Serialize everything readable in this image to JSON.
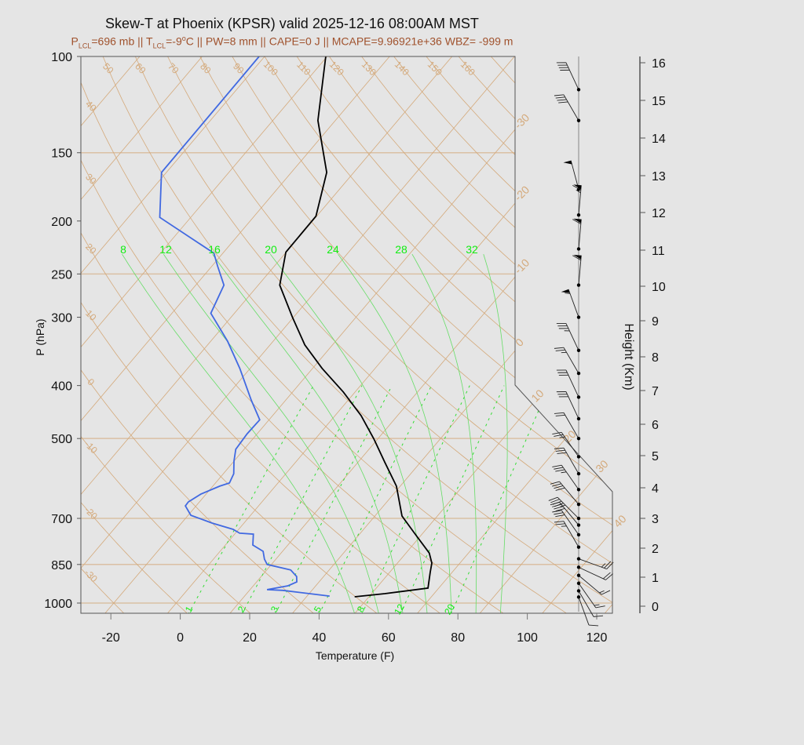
{
  "title": "Skew-T at Phoenix (KPSR) valid 2025-12-16 08:00AM MST",
  "subtitle": {
    "p_sym": "P",
    "lcl": "LCL",
    "p_val": "=696 mb || ",
    "t_sym": "T",
    "t_val": "=-9",
    "deg": "o",
    "rest": "C || PW=8 mm || CAPE=0 J || MCAPE=9.96921e+36 WBZ= -999 m"
  },
  "colors": {
    "temperature": "#000000",
    "dewpoint": "#4169e1",
    "isotherm": "#d4a97a",
    "moist_adiabat": "#66dd66",
    "mixing_ratio": "#22dd22",
    "subtitle": "#a0522d"
  },
  "chart_data": {
    "type": "line",
    "subtype": "skew-t log-p",
    "xlabel": "Temperature (F)",
    "ylabel": "P (hPa)",
    "y2label": "Height (Km)",
    "xticks": [
      "-20",
      "0",
      "20",
      "40",
      "60",
      "80",
      "100",
      "120"
    ],
    "yticks": [
      "100",
      "150",
      "200",
      "250",
      "300",
      "400",
      "500",
      "700",
      "850",
      "1000"
    ],
    "y2ticks": [
      "0",
      "1",
      "2",
      "3",
      "4",
      "5",
      "6",
      "7",
      "8",
      "9",
      "10",
      "11",
      "12",
      "13",
      "14",
      "15",
      "16"
    ],
    "ylim": [
      1050,
      100
    ],
    "yscale": "log",
    "series": [
      {
        "key": "temperature",
        "color": "#000000",
        "points": [
          [
            974,
            45.9
          ],
          [
            961,
            53.8
          ],
          [
            939,
            64.9
          ],
          [
            879,
            61.7
          ],
          [
            845,
            59.9
          ],
          [
            810,
            56.7
          ],
          [
            745,
            47.6
          ],
          [
            693,
            39.8
          ],
          [
            611,
            30.9
          ],
          [
            553,
            21.8
          ],
          [
            501,
            12.9
          ],
          [
            454,
            3.5
          ],
          [
            411,
            -7.4
          ],
          [
            372,
            -19.3
          ],
          [
            337,
            -30.0
          ],
          [
            300,
            -40.3
          ],
          [
            262,
            -51.8
          ],
          [
            228,
            -58.1
          ],
          [
            196,
            -58.2
          ],
          [
            163,
            -65.8
          ],
          [
            131,
            -81.0
          ],
          [
            100,
            -94.4
          ]
        ]
      },
      {
        "key": "dewpoint",
        "color": "#4169e1",
        "points": [
          [
            971,
            38.5
          ],
          [
            948,
            23.6
          ],
          [
            945,
            18.9
          ],
          [
            930,
            24.0
          ],
          [
            915,
            25.6
          ],
          [
            894,
            24.2
          ],
          [
            870,
            20.9
          ],
          [
            850,
            12.8
          ],
          [
            831,
            10.7
          ],
          [
            804,
            8.4
          ],
          [
            783,
            3.9
          ],
          [
            748,
            1.4
          ],
          [
            745,
            -2.8
          ],
          [
            733,
            -5.6
          ],
          [
            714,
            -13.2
          ],
          [
            691,
            -21.2
          ],
          [
            664,
            -25.1
          ],
          [
            653,
            -25.2
          ],
          [
            632,
            -23.5
          ],
          [
            611,
            -20.0
          ],
          [
            603,
            -18.0
          ],
          [
            580,
            -19.0
          ],
          [
            550,
            -22.0
          ],
          [
            523,
            -24.4
          ],
          [
            490,
            -24.9
          ],
          [
            462,
            -24.7
          ],
          [
            425,
            -32.0
          ],
          [
            372,
            -43.0
          ],
          [
            332,
            -53.1
          ],
          [
            295,
            -64.8
          ],
          [
            262,
            -67.9
          ],
          [
            242,
            -74.3
          ],
          [
            229,
            -78.6
          ],
          [
            197,
            -102.9
          ],
          [
            163,
            -113.4
          ],
          [
            100,
            -113.6
          ]
        ]
      }
    ],
    "dry_adiabat_labels_top": [
      "50",
      "60",
      "70",
      "80",
      "90",
      "100",
      "110",
      "120",
      "130",
      "140",
      "150",
      "160"
    ],
    "dry_adiabat_labels_left": [
      "40",
      "30",
      "20",
      "10",
      "0",
      "-10",
      "-20",
      "-30"
    ],
    "isotherm_labels_right": [
      "-30",
      "-20",
      "-10",
      "0",
      "10",
      "20",
      "30",
      "40"
    ],
    "moist_adiabat_labels": [
      "8",
      "12",
      "16",
      "20",
      "24",
      "28",
      "32"
    ],
    "mixing_ratio_labels": [
      "1",
      "2",
      "3",
      "5",
      "8",
      "12",
      "20"
    ],
    "wind_barbs_kt": [
      [
        115,
        335,
        40
      ],
      [
        131,
        330,
        40
      ],
      [
        175,
        345,
        50
      ],
      [
        195,
        5,
        65
      ],
      [
        225,
        5,
        60
      ],
      [
        262,
        5,
        60
      ],
      [
        300,
        340,
        55
      ],
      [
        345,
        335,
        35
      ],
      [
        380,
        330,
        25
      ],
      [
        420,
        335,
        30
      ],
      [
        460,
        335,
        30
      ],
      [
        500,
        330,
        20
      ],
      [
        540,
        325,
        25
      ],
      [
        580,
        330,
        30
      ],
      [
        620,
        325,
        35
      ],
      [
        660,
        320,
        40
      ],
      [
        700,
        315,
        45
      ],
      [
        720,
        320,
        40
      ],
      [
        750,
        325,
        30
      ],
      [
        790,
        330,
        25
      ],
      [
        830,
        110,
        25
      ],
      [
        860,
        115,
        20
      ],
      [
        890,
        130,
        15
      ],
      [
        920,
        145,
        15
      ],
      [
        950,
        150,
        10
      ],
      [
        975,
        160,
        10
      ]
    ]
  }
}
